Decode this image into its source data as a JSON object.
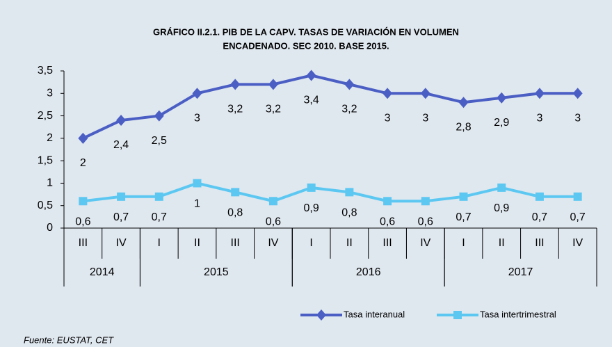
{
  "chart_data": {
    "type": "line",
    "title": "GRÁFICO II.2.1. PIB DE LA CAPV. TASAS DE VARIACIÓN EN VOLUMEN",
    "subtitle": "ENCADENADO. SEC 2010. BASE 2015.",
    "groups": [
      {
        "label": "2014",
        "quarters": [
          "III",
          "IV"
        ]
      },
      {
        "label": "2015",
        "quarters": [
          "I",
          "II",
          "III",
          "IV"
        ]
      },
      {
        "label": "2016",
        "quarters": [
          "I",
          "II",
          "III",
          "IV"
        ]
      },
      {
        "label": "2017",
        "quarters": [
          "I",
          "II",
          "III",
          "IV"
        ]
      }
    ],
    "series": [
      {
        "name": "Tasa interanual",
        "color": "#4a5ec4",
        "marker": "diamond",
        "values": [
          2,
          2.4,
          2.5,
          3,
          3.2,
          3.2,
          3.4,
          3.2,
          3,
          3,
          2.8,
          2.9,
          3,
          3
        ],
        "value_labels": [
          "2",
          "2,4",
          "2,5",
          "3",
          "3,2",
          "3,2",
          "3,4",
          "3,2",
          "3",
          "3",
          "2,8",
          "2,9",
          "3",
          "3"
        ]
      },
      {
        "name": "Tasa intertrimestral",
        "color": "#5cc8f2",
        "marker": "square",
        "values": [
          0.6,
          0.7,
          0.7,
          1,
          0.8,
          0.6,
          0.9,
          0.8,
          0.6,
          0.6,
          0.7,
          0.9,
          0.7,
          0.7
        ],
        "value_labels": [
          "0,6",
          "0,7",
          "0,7",
          "1",
          "0,8",
          "0,6",
          "0,9",
          "0,8",
          "0,6",
          "0,6",
          "0,7",
          "0,9",
          "0,7",
          "0,7"
        ]
      }
    ],
    "ylim": [
      0,
      3.5
    ],
    "yticks": [
      0,
      {
        "value": 0.5,
        "label": "0,5"
      },
      1,
      {
        "value": 1.5,
        "label": "1,5"
      },
      2,
      {
        "value": 2.5,
        "label": "2,5"
      },
      3,
      {
        "value": 3.5,
        "label": "3,5"
      }
    ],
    "grid": false,
    "legend": "bottom",
    "source": "Fuente: EUSTAT, CET"
  }
}
